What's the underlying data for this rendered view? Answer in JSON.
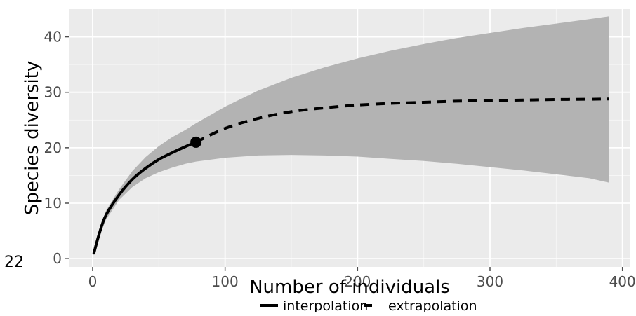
{
  "chart_data": {
    "type": "line",
    "xlabel": "Number of individuals",
    "ylabel": "Species diversity",
    "xlim": [
      -18,
      406
    ],
    "ylim": [
      -1.5,
      45
    ],
    "x_ticks": [
      0,
      100,
      200,
      300,
      400
    ],
    "x_tick_labels": [
      "0",
      "100",
      "200",
      "300",
      "400"
    ],
    "y_ticks": [
      0,
      10,
      20,
      30,
      40
    ],
    "y_tick_labels": [
      "0",
      "10",
      "20",
      "30",
      "40"
    ],
    "grid": true,
    "panel_background": "#ebebeb",
    "band_color": "#b3b3b3",
    "line_color": "#000000",
    "legend": {
      "placement": "bottom",
      "entries": [
        {
          "label": "interpolation",
          "style": "solid"
        },
        {
          "label": "extrapolation",
          "style": "dashed"
        }
      ]
    },
    "observed_point": {
      "x": 78,
      "y": 21
    },
    "series": [
      {
        "name": "interpolation",
        "style": "solid",
        "x": [
          1,
          5,
          10,
          20,
          30,
          40,
          50,
          60,
          70,
          78
        ],
        "y": [
          1,
          4.5,
          7.8,
          11.5,
          14.3,
          16.3,
          17.9,
          19.1,
          20.2,
          21
        ]
      },
      {
        "name": "extrapolation",
        "style": "dashed",
        "x": [
          78,
          100,
          125,
          150,
          175,
          200,
          225,
          250,
          275,
          300,
          325,
          350,
          375,
          390
        ],
        "y": [
          21,
          23.5,
          25.3,
          26.5,
          27.2,
          27.7,
          28.0,
          28.2,
          28.4,
          28.5,
          28.6,
          28.7,
          28.75,
          28.8
        ]
      }
    ],
    "confidence_band": {
      "x": [
        1,
        5,
        10,
        20,
        30,
        40,
        50,
        60,
        70,
        78,
        100,
        125,
        150,
        175,
        200,
        225,
        250,
        275,
        300,
        325,
        350,
        375,
        390
      ],
      "lower": [
        1,
        4.0,
        7.0,
        10.6,
        12.9,
        14.5,
        15.6,
        16.4,
        17.1,
        17.5,
        18.2,
        18.6,
        18.7,
        18.6,
        18.4,
        18.0,
        17.6,
        17.1,
        16.5,
        15.9,
        15.2,
        14.5,
        13.7
      ],
      "upper": [
        1,
        5.0,
        8.6,
        12.5,
        15.8,
        18.3,
        20.3,
        21.9,
        23.2,
        24.4,
        27.4,
        30.3,
        32.6,
        34.5,
        36.1,
        37.5,
        38.7,
        39.8,
        40.7,
        41.6,
        42.4,
        43.2,
        43.7
      ]
    }
  },
  "page": {
    "stray_label": "22"
  }
}
